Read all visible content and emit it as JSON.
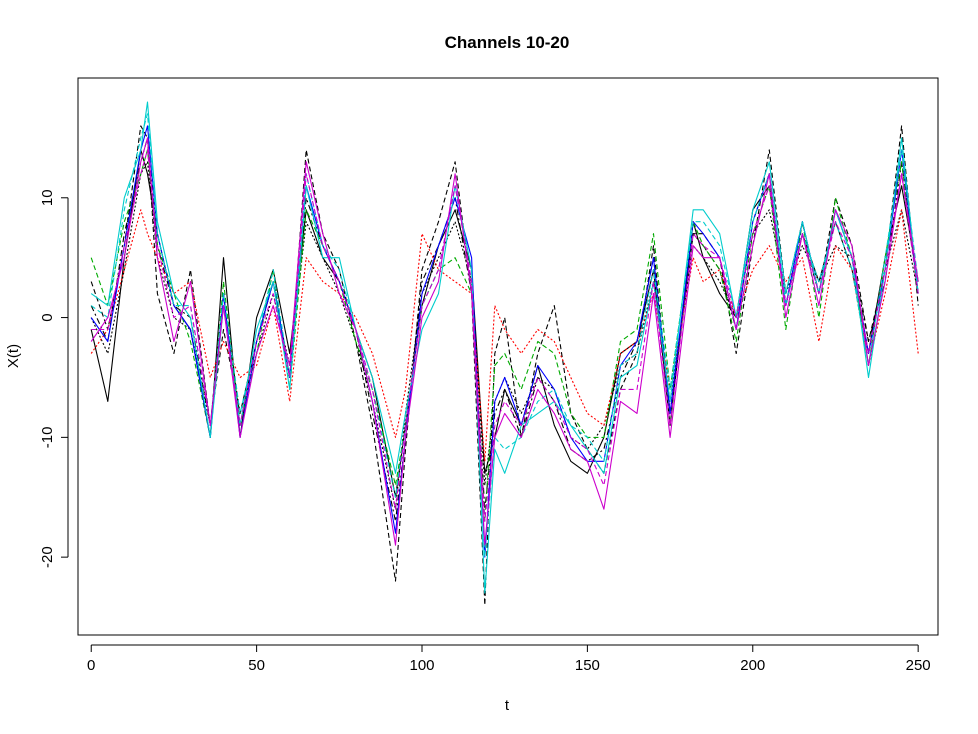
{
  "chart_data": {
    "type": "line",
    "title": "Channels 10-20",
    "xlabel": "t",
    "ylabel": "X(t)",
    "xlim": [
      -4,
      256
    ],
    "ylim": [
      -26.5,
      20
    ],
    "x_ticks": [
      0,
      50,
      100,
      150,
      200,
      250
    ],
    "y_ticks": [
      -20,
      -10,
      0,
      10
    ],
    "x_tick_labels": [
      "0",
      "50",
      "100",
      "150",
      "200",
      "250"
    ],
    "y_tick_labels": [
      "-20",
      "-10",
      "0",
      "10"
    ],
    "grid": false,
    "legend": "none",
    "x": [
      0,
      5,
      10,
      15,
      17,
      20,
      25,
      30,
      36,
      40,
      45,
      50,
      55,
      60,
      65,
      70,
      75,
      80,
      85,
      92,
      95,
      100,
      105,
      110,
      115,
      119,
      122,
      125,
      130,
      135,
      140,
      145,
      150,
      155,
      160,
      165,
      170,
      175,
      182,
      185,
      190,
      195,
      200,
      205,
      210,
      215,
      220,
      225,
      230,
      235,
      240,
      245,
      250
    ],
    "series": [
      {
        "color": "#000000",
        "dash": "solid",
        "values": [
          -1,
          -7,
          5,
          14,
          12,
          7,
          1,
          -1,
          -10,
          5,
          -10,
          0,
          4,
          -3,
          9,
          5,
          3,
          -1,
          -5,
          -15,
          -9,
          1,
          6,
          9,
          4,
          -13,
          -10,
          -6,
          -9,
          -4,
          -9,
          -12,
          -13,
          -10,
          -3,
          -2,
          4,
          -9,
          8,
          5,
          2,
          0,
          9,
          11,
          1,
          7,
          3,
          8,
          4,
          -3,
          5,
          11,
          3
        ]
      },
      {
        "color": "#000000",
        "dash": "dashed",
        "values": [
          3,
          -1,
          6,
          16,
          15,
          2,
          -3,
          4,
          -9,
          -1,
          -8,
          -2,
          3,
          -5,
          14,
          7,
          4,
          -2,
          -9,
          -22,
          -11,
          4,
          8,
          13,
          2,
          -24,
          -3,
          0,
          -10,
          -3,
          1,
          -8,
          -11,
          -13,
          -6,
          -3,
          6,
          -8,
          7,
          7,
          5,
          -3,
          6,
          14,
          2,
          8,
          2,
          10,
          6,
          -2,
          4,
          16,
          1
        ]
      },
      {
        "color": "#000000",
        "dash": "dotted",
        "values": [
          0,
          -3,
          4,
          12,
          13,
          5,
          0,
          -1,
          -9,
          1,
          -8,
          -3,
          2,
          -4,
          8,
          5,
          2,
          -2,
          -7,
          -16,
          -8,
          2,
          5,
          8,
          3,
          -14,
          -7,
          -5,
          -8,
          -5,
          -6,
          -10,
          -11,
          -9,
          -4,
          -3,
          3,
          -7,
          6,
          5,
          3,
          0,
          7,
          9,
          2,
          6,
          3,
          6,
          5,
          -3,
          4,
          9,
          2
        ]
      },
      {
        "color": "#000000",
        "dash": "dotdash",
        "values": [
          1,
          -2,
          7,
          13,
          15,
          6,
          1,
          0,
          -9,
          2,
          -9,
          -2,
          3,
          -5,
          10,
          6,
          3,
          -1,
          -8,
          -17,
          -10,
          3,
          6,
          10,
          2,
          -16,
          -8,
          -6,
          -10,
          -5,
          -7,
          -11,
          -12,
          -11,
          -5,
          -2,
          5,
          -8,
          7,
          6,
          4,
          -1,
          8,
          12,
          1,
          7,
          2,
          9,
          5,
          -2,
          3,
          13,
          2
        ]
      },
      {
        "color": "#ff0000",
        "dash": "dotted",
        "values": [
          -3,
          -1,
          4,
          9,
          7,
          5,
          2,
          3,
          -5,
          -2,
          -5,
          -4,
          1,
          -7,
          5,
          3,
          2,
          0,
          -3,
          -10,
          -6,
          7,
          4,
          3,
          2,
          -12,
          1,
          -1,
          -3,
          -1,
          -2,
          -5,
          -8,
          -9,
          -3,
          -2,
          2,
          -6,
          5,
          3,
          4,
          0,
          4,
          6,
          3,
          5,
          -2,
          6,
          4,
          -4,
          2,
          9,
          -3
        ]
      },
      {
        "color": "#00aa00",
        "dash": "dashed",
        "values": [
          5,
          1,
          8,
          12,
          14,
          6,
          2,
          -2,
          -10,
          3,
          -9,
          -3,
          4,
          -6,
          9,
          6,
          3,
          -2,
          -6,
          -14,
          -9,
          1,
          4,
          5,
          2,
          -17,
          -4,
          -3,
          -6,
          -2,
          -3,
          -8,
          -10,
          -10,
          -2,
          -1,
          7,
          -6,
          8,
          6,
          4,
          -2,
          7,
          11,
          -1,
          8,
          0,
          10,
          5,
          -4,
          5,
          13,
          2
        ]
      },
      {
        "color": "#0000ff",
        "dash": "solid",
        "values": [
          0,
          -2,
          6,
          14,
          16,
          7,
          1,
          -1,
          -10,
          2,
          -10,
          -2,
          3,
          -5,
          11,
          6,
          3,
          -1,
          -7,
          -18,
          -10,
          2,
          6,
          10,
          5,
          -20,
          -7,
          -5,
          -9,
          -4,
          -6,
          -10,
          -12,
          -12,
          -4,
          -2,
          5,
          -8,
          8,
          7,
          5,
          -1,
          8,
          12,
          1,
          8,
          2,
          9,
          5,
          -3,
          4,
          14,
          2
        ]
      },
      {
        "color": "#00cccc",
        "dash": "solid",
        "values": [
          2,
          1,
          10,
          14,
          18,
          8,
          2,
          0,
          -10,
          1,
          -9,
          -1,
          3,
          -6,
          11,
          5,
          5,
          -1,
          -5,
          -13,
          -8,
          -1,
          2,
          11,
          4,
          -23,
          -11,
          -13,
          -9,
          -8,
          -7,
          -9,
          -11,
          -13,
          -5,
          -4,
          3,
          -7,
          9,
          9,
          7,
          0,
          9,
          13,
          2,
          8,
          2,
          9,
          5,
          -5,
          4,
          15,
          2
        ]
      },
      {
        "color": "#00cccc",
        "dash": "dashed",
        "values": [
          1,
          0,
          9,
          15,
          17,
          7,
          1,
          1,
          -9,
          2,
          -8,
          -2,
          4,
          -5,
          12,
          6,
          4,
          -1,
          -6,
          -15,
          -9,
          1,
          4,
          11,
          3,
          -20,
          -10,
          -11,
          -10,
          -7,
          -6,
          -9,
          -10,
          -12,
          -4,
          -3,
          4,
          -6,
          8,
          8,
          6,
          0,
          8,
          12,
          1,
          7,
          3,
          8,
          4,
          -4,
          5,
          14,
          3
        ]
      },
      {
        "color": "#cc00cc",
        "dash": "solid",
        "values": [
          -2,
          0,
          5,
          13,
          15,
          5,
          -2,
          3,
          -9,
          1,
          -10,
          -3,
          1,
          -4,
          13,
          7,
          2,
          -1,
          -7,
          -19,
          -10,
          0,
          3,
          12,
          2,
          -19,
          -10,
          -8,
          -10,
          -6,
          -8,
          -11,
          -12,
          -16,
          -7,
          -8,
          2,
          -10,
          6,
          5,
          5,
          -1,
          6,
          12,
          0,
          7,
          1,
          9,
          6,
          -4,
          3,
          12,
          3
        ]
      },
      {
        "color": "#cc00cc",
        "dash": "dashed",
        "values": [
          -1,
          -1,
          6,
          12,
          14,
          6,
          0,
          1,
          -9,
          1,
          -9,
          -2,
          2,
          -5,
          12,
          6,
          3,
          -1,
          -6,
          -16,
          -9,
          1,
          4,
          11,
          3,
          -17,
          -9,
          -7,
          -9,
          -5,
          -7,
          -10,
          -11,
          -14,
          -6,
          -6,
          3,
          -9,
          7,
          6,
          5,
          0,
          7,
          11,
          1,
          7,
          2,
          8,
          5,
          -3,
          4,
          12,
          2
        ]
      }
    ]
  }
}
